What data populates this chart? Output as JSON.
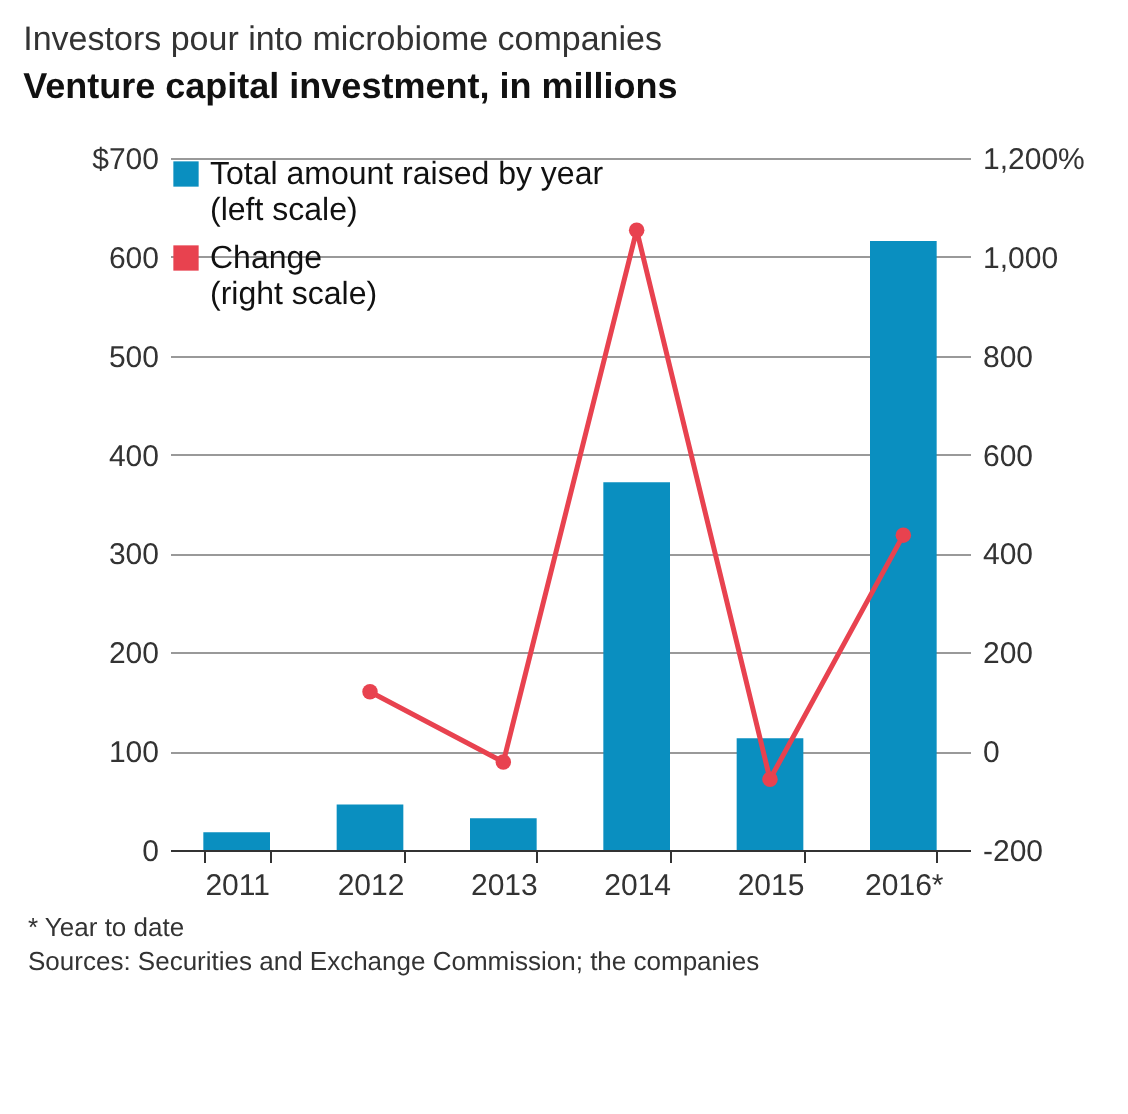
{
  "chart_data": {
    "type": "bar",
    "title": "Investors pour into microbiome companies",
    "subtitle": "Venture capital investment, in millions",
    "categories": [
      "2011",
      "2012",
      "2013",
      "2014",
      "2015",
      "2016*"
    ],
    "series": [
      {
        "name": "Total amount raised by year\n(left scale)",
        "color": "#0a8fc0",
        "values": [
          18,
          46,
          32,
          372,
          113,
          616
        ]
      },
      {
        "name": "Change\n(right scale)",
        "type": "line",
        "axis": "y2",
        "color": "#e8424f",
        "values": [
          null,
          120,
          -22,
          1054,
          -57,
          437
        ]
      }
    ],
    "ylim": [
      0,
      700
    ],
    "yticks": [
      0,
      100,
      200,
      300,
      400,
      500,
      600,
      {
        "value": 700,
        "label": "$700"
      }
    ],
    "y2lim": [
      -200,
      1200
    ],
    "y2ticks": [
      -200,
      0,
      200,
      400,
      600,
      800,
      {
        "value": 1000,
        "label": "1,000"
      },
      {
        "value": 1200,
        "label": "1,200%"
      }
    ],
    "grid": true,
    "legend": "top left",
    "marker": "circle",
    "annotations": [
      "* Year to date",
      "Sources: Securities and Exchange Commission; the companies"
    ]
  }
}
